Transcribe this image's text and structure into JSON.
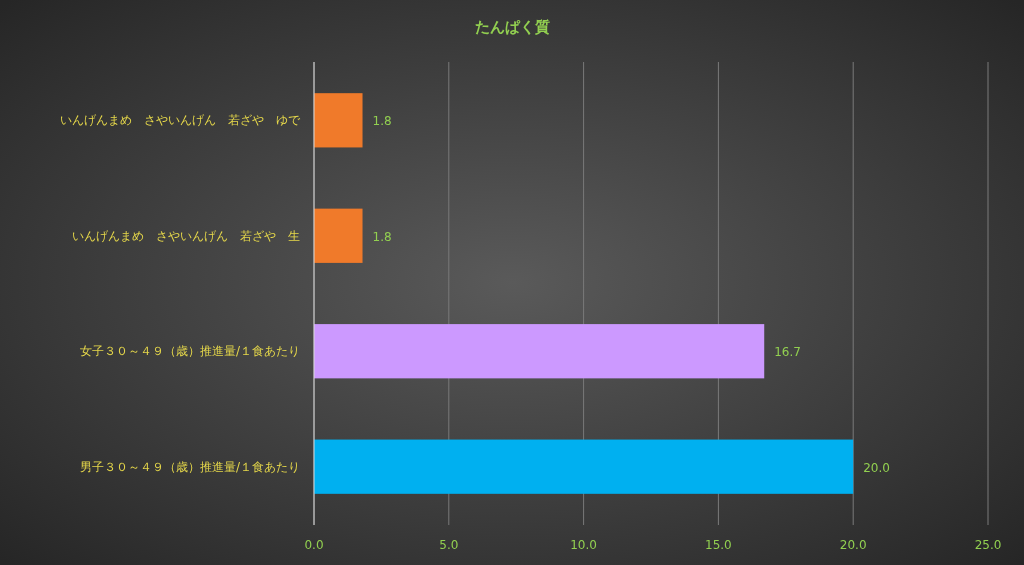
{
  "chart_data": {
    "type": "bar",
    "orientation": "horizontal",
    "title": "たんぱく質",
    "categories": [
      "いんげんまめ　さやいんげん　若ざや　ゆで",
      "いんげんまめ　さやいんげん　若ざや　生",
      "女子３０～４９（歳）推進量/１食あたり",
      "男子３０～４９（歳）推進量/１食あたり"
    ],
    "values": [
      1.8,
      1.8,
      16.7,
      20.0
    ],
    "colors": [
      "#f07a2a",
      "#f07a2a",
      "#cc99ff",
      "#00b0f0"
    ],
    "value_labels": [
      "1.8",
      "1.8",
      "16.7",
      "20.0"
    ],
    "xlim": [
      0,
      25
    ],
    "xticks": [
      {
        "value": 0,
        "label": "0.0"
      },
      {
        "value": 5,
        "label": "5.0"
      },
      {
        "value": 10,
        "label": "10.0"
      },
      {
        "value": 15,
        "label": "15.0"
      },
      {
        "value": 20,
        "label": "20.0"
      },
      {
        "value": 25,
        "label": "25.0"
      }
    ],
    "grid": "x"
  }
}
